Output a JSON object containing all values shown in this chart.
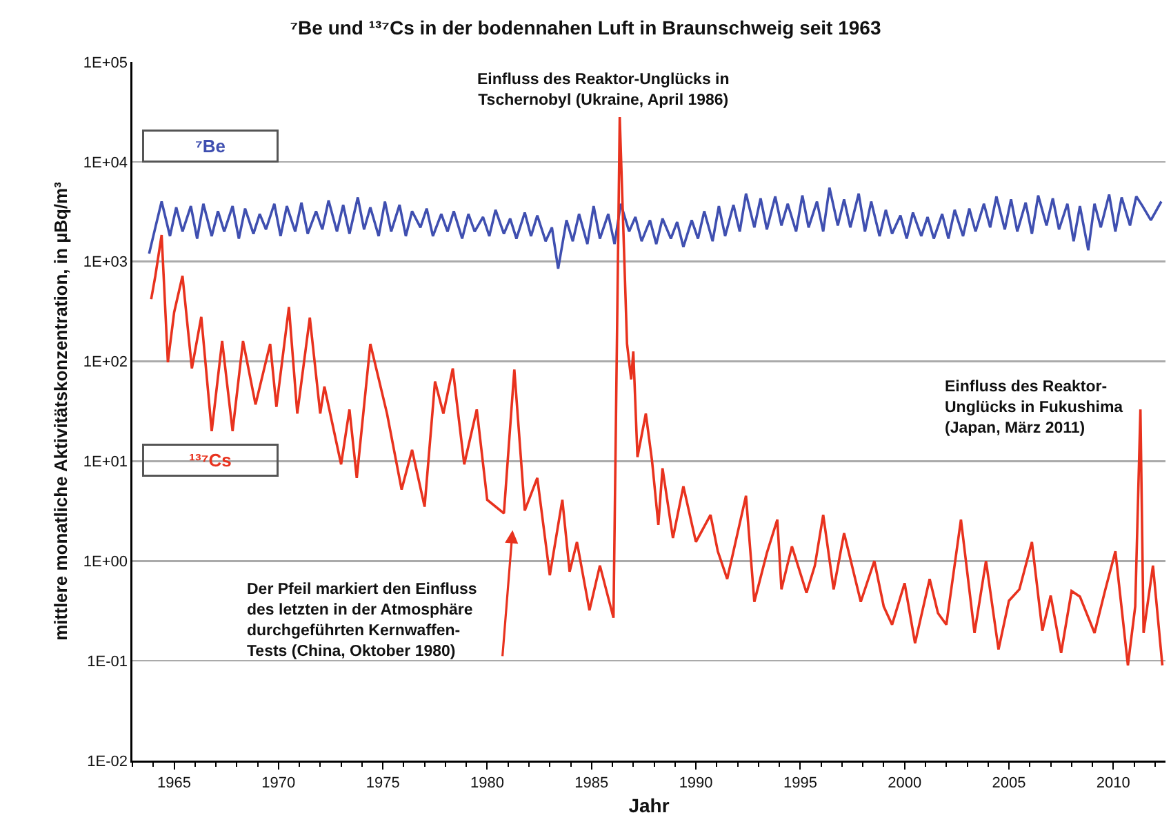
{
  "chart_data": {
    "type": "line",
    "title": "⁷Be und ¹³⁷Cs in der bodennahen Luft in Braunschweig seit 1963",
    "xlabel": "Jahr",
    "ylabel": "mittlere monatliche Aktivitätskonzentration, in µBq/m³",
    "log": "y",
    "grid": "y",
    "legend": false,
    "marker": "none",
    "xlim": [
      1963,
      2012.5
    ],
    "xticks": [
      1965,
      1970,
      1975,
      1980,
      1985,
      1990,
      1995,
      2000,
      2005,
      2010
    ],
    "ylim": [
      0.01,
      100000
    ],
    "yticks": [
      {
        "value": 0.01,
        "label": "1E-02"
      },
      {
        "value": 0.1,
        "label": "1E-01"
      },
      {
        "value": 1,
        "label": "1E+00"
      },
      {
        "value": 10,
        "label": "1E+01"
      },
      {
        "value": 100,
        "label": "1E+02"
      },
      {
        "value": 1000,
        "label": "1E+03"
      },
      {
        "value": 10000,
        "label": "1E+04"
      },
      {
        "value": 100000,
        "label": "1E+05"
      }
    ],
    "series": [
      {
        "name": "⁷Be",
        "color": "#3f4fb0",
        "x": [
          1963.8,
          1964.1,
          1964.4,
          1964.8,
          1965.1,
          1965.4,
          1965.8,
          1966.1,
          1966.4,
          1966.8,
          1967.1,
          1967.4,
          1967.8,
          1968.1,
          1968.4,
          1968.8,
          1969.1,
          1969.4,
          1969.8,
          1970.1,
          1970.4,
          1970.8,
          1971.1,
          1971.4,
          1971.8,
          1972.1,
          1972.4,
          1972.8,
          1973.1,
          1973.4,
          1973.8,
          1974.1,
          1974.4,
          1974.8,
          1975.1,
          1975.4,
          1975.8,
          1976.1,
          1976.4,
          1976.8,
          1977.1,
          1977.4,
          1977.8,
          1978.1,
          1978.4,
          1978.8,
          1979.1,
          1979.4,
          1979.8,
          1980.1,
          1980.4,
          1980.8,
          1981.1,
          1981.4,
          1981.8,
          1982.1,
          1982.4,
          1982.8,
          1983.1,
          1983.4,
          1983.8,
          1984.1,
          1984.4,
          1984.8,
          1985.1,
          1985.4,
          1985.8,
          1986.1,
          1986.4,
          1986.8,
          1987.1,
          1987.4,
          1987.8,
          1988.1,
          1988.4,
          1988.8,
          1989.1,
          1989.4,
          1989.8,
          1990.1,
          1990.4,
          1990.8,
          1991.1,
          1991.4,
          1991.8,
          1992.1,
          1992.4,
          1992.8,
          1993.1,
          1993.4,
          1993.8,
          1994.1,
          1994.4,
          1994.8,
          1995.1,
          1995.4,
          1995.8,
          1996.1,
          1996.4,
          1996.8,
          1997.1,
          1997.4,
          1997.8,
          1998.1,
          1998.4,
          1998.8,
          1999.1,
          1999.4,
          1999.8,
          2000.1,
          2000.4,
          2000.8,
          2001.1,
          2001.4,
          2001.8,
          2002.1,
          2002.4,
          2002.8,
          2003.1,
          2003.4,
          2003.8,
          2004.1,
          2004.4,
          2004.8,
          2005.1,
          2005.4,
          2005.8,
          2006.1,
          2006.4,
          2006.8,
          2007.1,
          2007.4,
          2007.8,
          2008.1,
          2008.4,
          2008.8,
          2009.1,
          2009.4,
          2009.8,
          2010.1,
          2010.4,
          2010.8,
          2011.1,
          2011.4,
          2011.8,
          2012.3
        ],
        "values": [
          1200,
          2200,
          4000,
          1800,
          3500,
          2000,
          3600,
          1700,
          3800,
          1800,
          3200,
          2000,
          3600,
          1700,
          3400,
          1900,
          3000,
          2100,
          3800,
          1800,
          3600,
          2000,
          3900,
          1900,
          3200,
          2100,
          4100,
          2000,
          3700,
          1900,
          4400,
          2100,
          3500,
          1800,
          4000,
          2000,
          3700,
          1800,
          3200,
          2200,
          3400,
          1800,
          3000,
          2000,
          3200,
          1700,
          3000,
          2000,
          2800,
          1800,
          3300,
          1900,
          2700,
          1700,
          3100,
          1800,
          2900,
          1600,
          2200,
          850,
          2600,
          1600,
          3000,
          1500,
          3600,
          1700,
          3000,
          1500,
          3800,
          2000,
          2800,
          1600,
          2600,
          1500,
          2700,
          1700,
          2500,
          1400,
          2600,
          1700,
          3200,
          1600,
          3600,
          1800,
          3700,
          2000,
          4800,
          2200,
          4300,
          2100,
          4500,
          2300,
          3800,
          2000,
          4600,
          2200,
          4000,
          2000,
          5500,
          2300,
          4200,
          2200,
          4800,
          2000,
          4000,
          1800,
          3300,
          1900,
          2900,
          1700,
          3100,
          1800,
          2800,
          1700,
          3000,
          1700,
          3300,
          1800,
          3400,
          2000,
          3800,
          2200,
          4500,
          2100,
          4200,
          2000,
          3900,
          1900,
          4600,
          2300,
          4300,
          2100,
          3800,
          1600,
          3600,
          1300,
          3800,
          2200,
          4700,
          2000,
          4400,
          2300,
          4500,
          3600,
          2600,
          4000
        ]
      },
      {
        "name": "¹³⁷Cs",
        "color": "#e8321e",
        "x": [
          1963.9,
          1964.1,
          1964.4,
          1964.7,
          1965.0,
          1965.4,
          1965.85,
          1966.3,
          1966.8,
          1967.3,
          1967.8,
          1968.3,
          1968.9,
          1969.6,
          1969.9,
          1970.5,
          1970.9,
          1971.5,
          1972.0,
          1972.2,
          1973.0,
          1973.4,
          1973.75,
          1974.4,
          1975.2,
          1975.9,
          1976.4,
          1977.0,
          1977.5,
          1977.9,
          1978.35,
          1978.9,
          1979.5,
          1980.0,
          1980.8,
          1981.3,
          1981.8,
          1982.4,
          1983.0,
          1983.6,
          1983.95,
          1984.3,
          1984.9,
          1985.4,
          1986.05,
          1986.35,
          1986.7,
          1986.9,
          1987.0,
          1987.2,
          1987.6,
          1987.9,
          1988.2,
          1988.4,
          1988.9,
          1989.4,
          1990.0,
          1990.7,
          1991.05,
          1991.5,
          1992.4,
          1992.8,
          1993.4,
          1993.9,
          1994.1,
          1994.6,
          1995.3,
          1995.7,
          1996.1,
          1996.6,
          1997.1,
          1997.9,
          1998.55,
          1999.0,
          1999.4,
          2000.0,
          2000.5,
          2001.2,
          2001.6,
          2002.0,
          2002.7,
          2003.35,
          2003.9,
          2004.5,
          2005.0,
          2005.5,
          2006.1,
          2006.6,
          2007.0,
          2007.5,
          2008.0,
          2008.4,
          2009.1,
          2009.6,
          2010.1,
          2010.7,
          2011.05,
          2011.3,
          2011.45,
          2011.9,
          2012.35
        ],
        "values": [
          420,
          720,
          1850,
          98,
          310,
          720,
          85,
          280,
          20,
          160,
          20,
          160,
          37,
          150,
          35,
          350,
          30,
          275,
          30,
          56,
          9.3,
          33,
          6.8,
          150,
          30,
          5.2,
          13,
          3.5,
          63,
          30,
          85,
          9.3,
          33,
          4.1,
          3,
          83,
          3.2,
          6.8,
          0.72,
          4.1,
          0.78,
          1.55,
          0.32,
          0.9,
          0.27,
          28000,
          150,
          66,
          126,
          11,
          30,
          10,
          2.3,
          8.5,
          1.7,
          5.6,
          1.55,
          2.9,
          1.25,
          0.66,
          4.5,
          0.39,
          1.2,
          2.6,
          0.52,
          1.4,
          0.48,
          0.9,
          2.9,
          0.52,
          1.9,
          0.39,
          1,
          0.35,
          0.23,
          0.6,
          0.15,
          0.66,
          0.3,
          0.23,
          2.6,
          0.19,
          1,
          0.13,
          0.4,
          0.52,
          1.55,
          0.2,
          0.45,
          0.12,
          0.5,
          0.44,
          0.19,
          0.5,
          1.25,
          0.09,
          0.35,
          33,
          0.19,
          0.9,
          0.09
        ]
      }
    ],
    "annotations": [
      {
        "text": "Einfluss des Reaktor-Unglücks in\nTschernobyl (Ukraine, April 1986)",
        "x": 1986.35,
        "y": 28000
      },
      {
        "text": "Einfluss des Reaktor-\nUnglücks in Fukushima\n(Japan, März 2011)",
        "x": 2011.3,
        "y": 33
      },
      "Der Pfeil markiert den Einfluss\ndes letzten in der Atmosphäre\ndurchgeführten Kernwaffen-\nTests (China, Oktober 1980)"
    ]
  }
}
